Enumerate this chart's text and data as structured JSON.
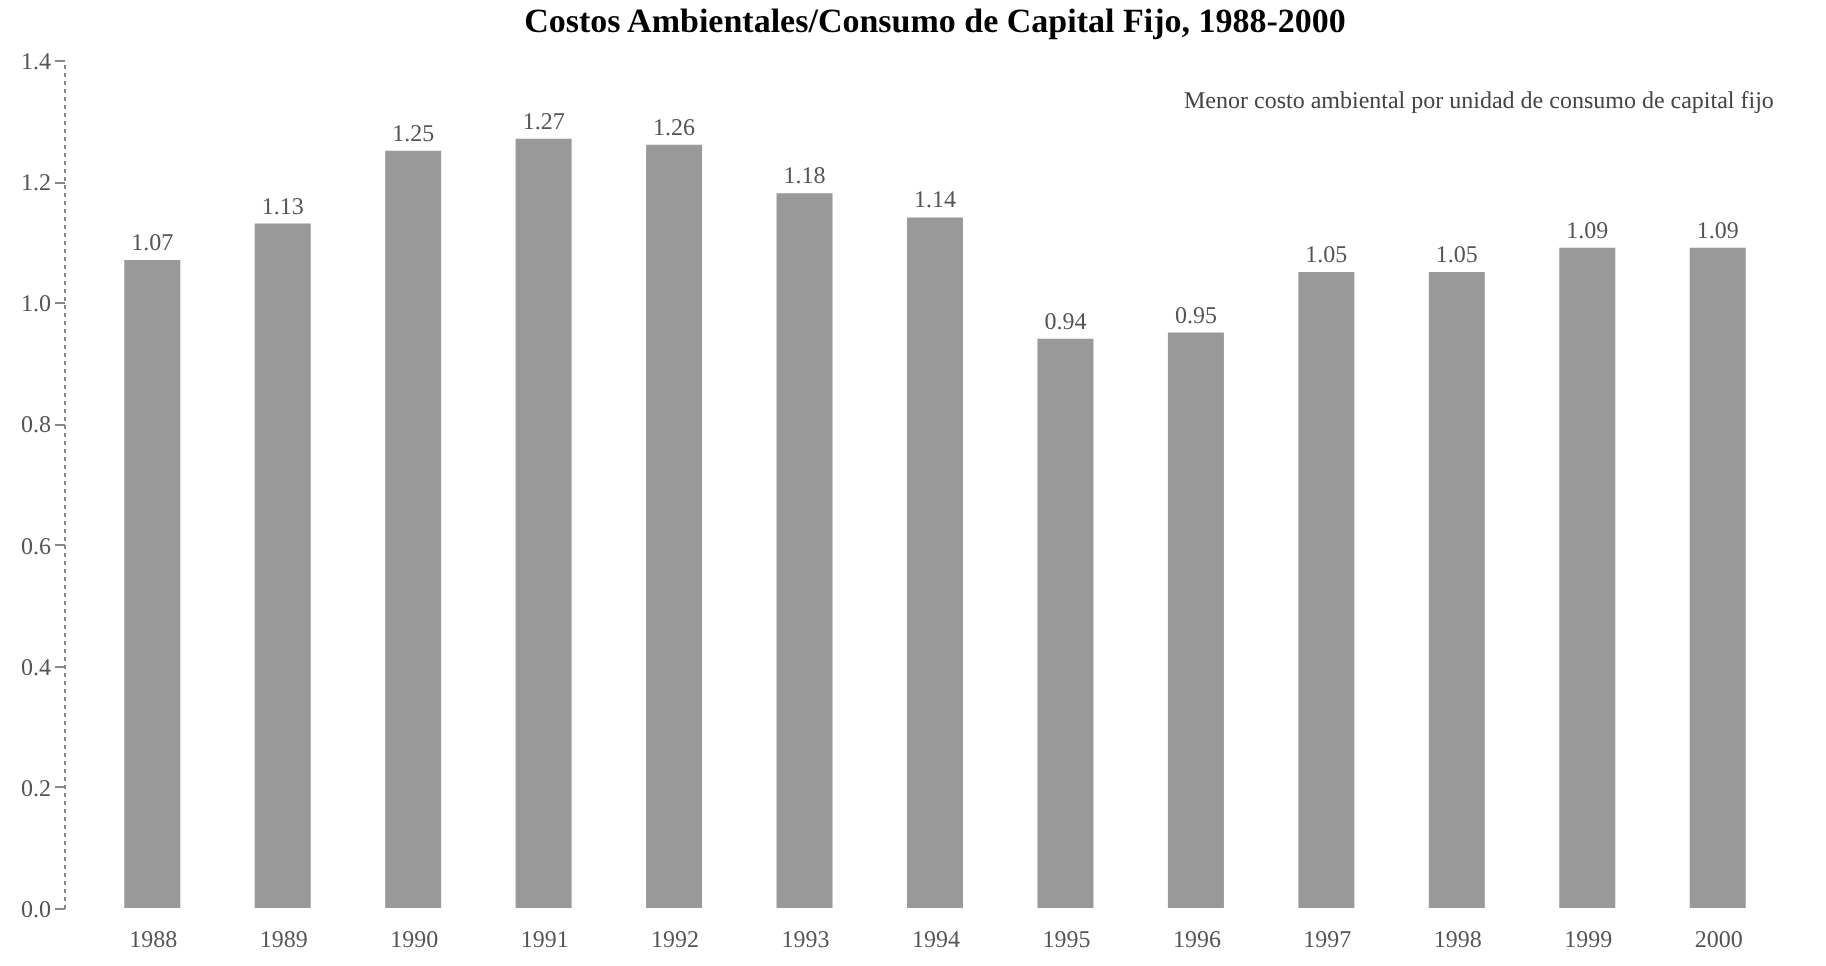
{
  "chart_data": {
    "type": "bar",
    "title": "Costos Ambientales/Consumo de Capital Fijo, 1988-2000",
    "categories": [
      "1988",
      "1989",
      "1990",
      "1991",
      "1992",
      "1993",
      "1994",
      "1995",
      "1996",
      "1997",
      "1998",
      "1999",
      "2000"
    ],
    "values": [
      1.07,
      1.13,
      1.25,
      1.27,
      1.26,
      1.18,
      1.14,
      0.94,
      0.95,
      1.05,
      1.05,
      1.09,
      1.09
    ],
    "color": "#999999",
    "ylim": [
      0,
      1.4
    ],
    "yticks": [
      {
        "value": 0,
        "label": "0.0"
      },
      {
        "value": 0.2,
        "label": "0.2"
      },
      {
        "value": 0.4,
        "label": "0.4"
      },
      {
        "value": 0.6,
        "label": "0.6"
      },
      {
        "value": 0.8,
        "label": "0.8"
      },
      {
        "value": 1.0,
        "label": "1.0"
      },
      {
        "value": 1.2,
        "label": "1.2"
      },
      {
        "value": 1.4,
        "label": "1.4"
      }
    ],
    "data_labels": true,
    "grid": false,
    "annotations": [
      "Menor costo ambiental por unidad de consumo de capital fijo"
    ]
  }
}
